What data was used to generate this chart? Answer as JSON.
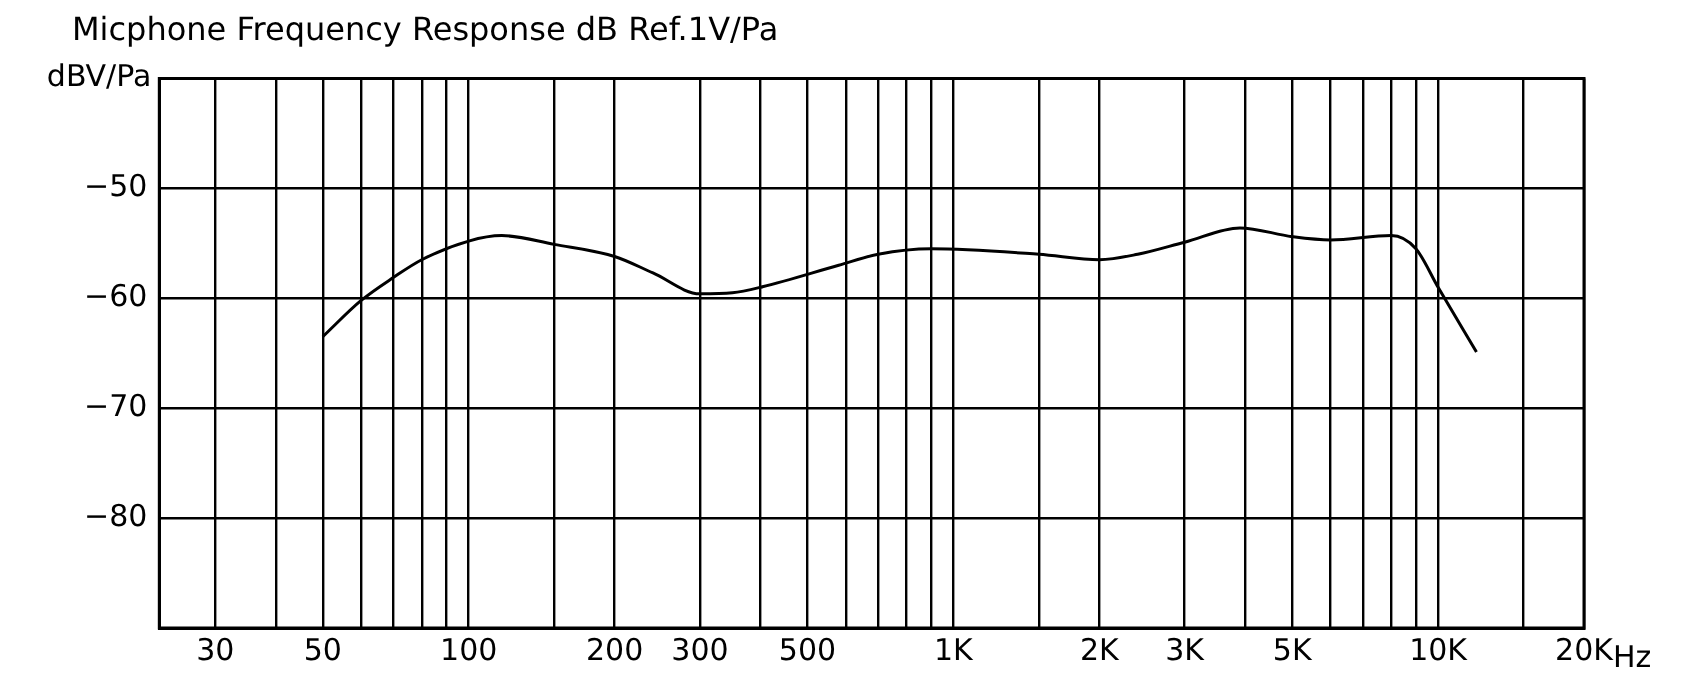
{
  "chart_data": {
    "type": "line",
    "title": "Micphone Frequency Response dB Ref.1V/Pa",
    "ylabel": "dBV/Pa",
    "x": [
      50,
      60,
      70,
      80,
      100,
      117,
      150,
      200,
      240,
      300,
      350,
      400,
      580,
      700,
      900,
      1500,
      2000,
      2400,
      3000,
      3900,
      5000,
      6000,
      8000,
      9000,
      10000,
      12000
    ],
    "series": [
      {
        "color": "#000000",
        "values": [
          -63.5,
          -60.2,
          -58.1,
          -56.5,
          -54.8,
          -54.3,
          -55.1,
          -56.2,
          -57.7,
          -59.6,
          -59.5,
          -59.0,
          -57.0,
          -56.0,
          -55.5,
          -56.0,
          -56.5,
          -56.0,
          -54.9,
          -53.6,
          -54.4,
          -54.7,
          -54.3,
          -55.5,
          -59.0,
          -64.9
        ]
      }
    ],
    "log": "x",
    "xlim": [
      23,
      20000
    ],
    "xticks": [
      {
        "value": 30,
        "label": "30"
      },
      {
        "value": 40,
        "label": null
      },
      {
        "value": 50,
        "label": "50"
      },
      {
        "value": 60,
        "label": null
      },
      {
        "value": 70,
        "label": null
      },
      {
        "value": 80,
        "label": null
      },
      {
        "value": 90,
        "label": null
      },
      {
        "value": 100,
        "label": "100"
      },
      {
        "value": 150,
        "label": null
      },
      {
        "value": 200,
        "label": "200"
      },
      {
        "value": 300,
        "label": "300"
      },
      {
        "value": 400,
        "label": null
      },
      {
        "value": 500,
        "label": "500"
      },
      {
        "value": 600,
        "label": null
      },
      {
        "value": 700,
        "label": null
      },
      {
        "value": 800,
        "label": null
      },
      {
        "value": 900,
        "label": null
      },
      {
        "value": 1000,
        "label": "1K"
      },
      {
        "value": 1500,
        "label": null
      },
      {
        "value": 2000,
        "label": "2K"
      },
      {
        "value": 3000,
        "label": "3K"
      },
      {
        "value": 4000,
        "label": null
      },
      {
        "value": 5000,
        "label": "5K"
      },
      {
        "value": 6000,
        "label": null
      },
      {
        "value": 7000,
        "label": null
      },
      {
        "value": 8000,
        "label": null
      },
      {
        "value": 9000,
        "label": null
      },
      {
        "value": 10000,
        "label": "10K"
      },
      {
        "value": 15000,
        "label": null
      },
      {
        "value": 20000,
        "label": "20K"
      }
    ],
    "xlabel": "Hz",
    "ylim": [
      -90,
      -40
    ],
    "yticks": [
      {
        "value": -90,
        "label": null
      },
      -80,
      -70,
      -60,
      -50,
      {
        "value": -40,
        "label": null
      }
    ],
    "grid": true,
    "legend": false,
    "marker": "none",
    "line_style": "solid"
  }
}
